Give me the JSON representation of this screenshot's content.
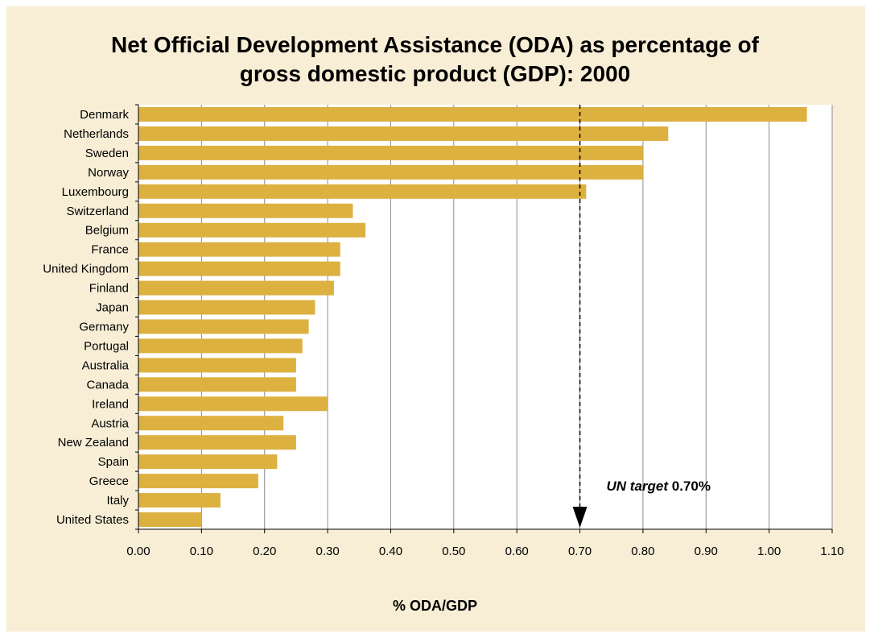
{
  "chart_data": {
    "type": "bar",
    "orientation": "horizontal",
    "title_lines": [
      "Net Official Development Assistance (ODA) as percentage of",
      "gross domestic product (GDP): 2000"
    ],
    "xlabel": "% ODA/GDP",
    "xlim": [
      0,
      1.1
    ],
    "xticks": [
      "0.00",
      "0.10",
      "0.20",
      "0.30",
      "0.40",
      "0.50",
      "0.60",
      "0.70",
      "0.80",
      "0.90",
      "1.00",
      "1.10"
    ],
    "grid": "vertical",
    "categories": [
      "Denmark",
      "Netherlands",
      "Sweden",
      "Norway",
      "Luxembourg",
      "Switzerland",
      "Belgium",
      "France",
      "United Kingdom",
      "Finland",
      "Japan",
      "Germany",
      "Portugal",
      "Australia",
      "Canada",
      "Ireland",
      "Austria",
      "New Zealand",
      "Spain",
      "Greece",
      "Italy",
      "United States"
    ],
    "values": [
      1.06,
      0.84,
      0.8,
      0.8,
      0.71,
      0.34,
      0.36,
      0.32,
      0.32,
      0.31,
      0.28,
      0.27,
      0.26,
      0.25,
      0.25,
      0.3,
      0.23,
      0.25,
      0.22,
      0.19,
      0.13,
      0.1
    ],
    "bar_color": "#dcb140",
    "reference_line": {
      "value": 0.7,
      "label_italic": "UN target",
      "label_value": "0.70%"
    }
  }
}
